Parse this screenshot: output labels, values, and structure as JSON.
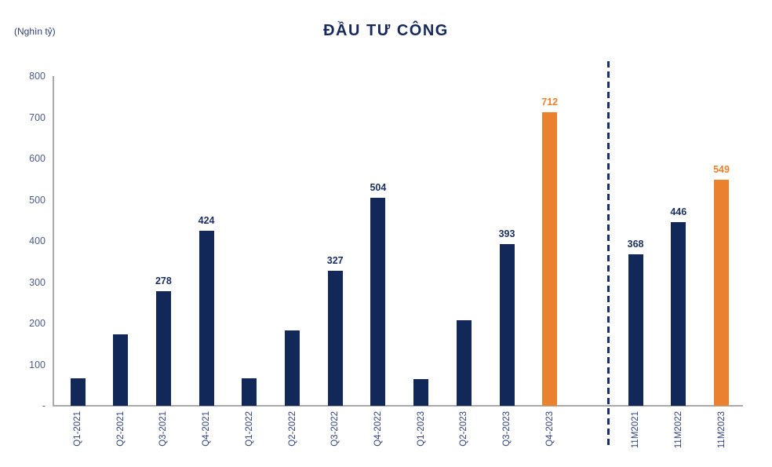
{
  "title": "ĐẦU TƯ CÔNG",
  "unit_label": "(Nghìn tỷ)",
  "colors": {
    "navy_bar": "#112859",
    "orange_bar": "#E9812F",
    "navy_label": "#1A2F5F",
    "orange_label": "#E9812F",
    "axis_line": "#A9A9A9",
    "tick_text": "#4A5A8C",
    "x_label_text": "#33447E",
    "separator": "#1B3068",
    "title_text": "#16295B"
  },
  "chart_data": {
    "type": "bar",
    "title": "ĐẦU TƯ CÔNG",
    "ylabel": "(Nghìn tỷ)",
    "ylim": [
      0,
      800
    ],
    "ytick_interval": 100,
    "grid": false,
    "legend": "none",
    "separator_after_index": 11,
    "yticks": [
      {
        "label": "800",
        "value": 800
      },
      {
        "label": "700",
        "value": 700
      },
      {
        "label": "600",
        "value": 600
      },
      {
        "label": "500",
        "value": 500
      },
      {
        "label": "400",
        "value": 400
      },
      {
        "label": "300",
        "value": 300
      },
      {
        "label": "200",
        "value": 200
      },
      {
        "label": "100",
        "value": 100
      },
      {
        "label": "-",
        "value": 0
      }
    ],
    "bars": [
      {
        "label": "Q1-2021",
        "value": 67,
        "value_label": "",
        "color": "navy",
        "group": "quarterly"
      },
      {
        "label": "Q2-2021",
        "value": 173,
        "value_label": "",
        "color": "navy",
        "group": "quarterly"
      },
      {
        "label": "Q3-2021",
        "value": 278,
        "value_label": "278",
        "color": "navy",
        "group": "quarterly"
      },
      {
        "label": "Q4-2021",
        "value": 424,
        "value_label": "424",
        "color": "navy",
        "group": "quarterly"
      },
      {
        "label": "Q1-2022",
        "value": 67,
        "value_label": "",
        "color": "navy",
        "group": "quarterly"
      },
      {
        "label": "Q2-2022",
        "value": 183,
        "value_label": "",
        "color": "navy",
        "group": "quarterly"
      },
      {
        "label": "Q3-2022",
        "value": 327,
        "value_label": "327",
        "color": "navy",
        "group": "quarterly"
      },
      {
        "label": "Q4-2022",
        "value": 504,
        "value_label": "504",
        "color": "navy",
        "group": "quarterly"
      },
      {
        "label": "Q1-2023",
        "value": 65,
        "value_label": "",
        "color": "navy",
        "group": "quarterly"
      },
      {
        "label": "Q2-2023",
        "value": 207,
        "value_label": "",
        "color": "navy",
        "group": "quarterly"
      },
      {
        "label": "Q3-2023",
        "value": 393,
        "value_label": "393",
        "color": "navy",
        "group": "quarterly"
      },
      {
        "label": "Q4-2023",
        "value": 712,
        "value_label": "712",
        "color": "orange",
        "group": "quarterly"
      },
      {
        "label": "11M2021",
        "value": 368,
        "value_label": "368",
        "color": "navy",
        "group": "cumulative"
      },
      {
        "label": "11M2022",
        "value": 446,
        "value_label": "446",
        "color": "navy",
        "group": "cumulative"
      },
      {
        "label": "11M2023",
        "value": 549,
        "value_label": "549",
        "color": "orange",
        "group": "cumulative"
      }
    ]
  }
}
